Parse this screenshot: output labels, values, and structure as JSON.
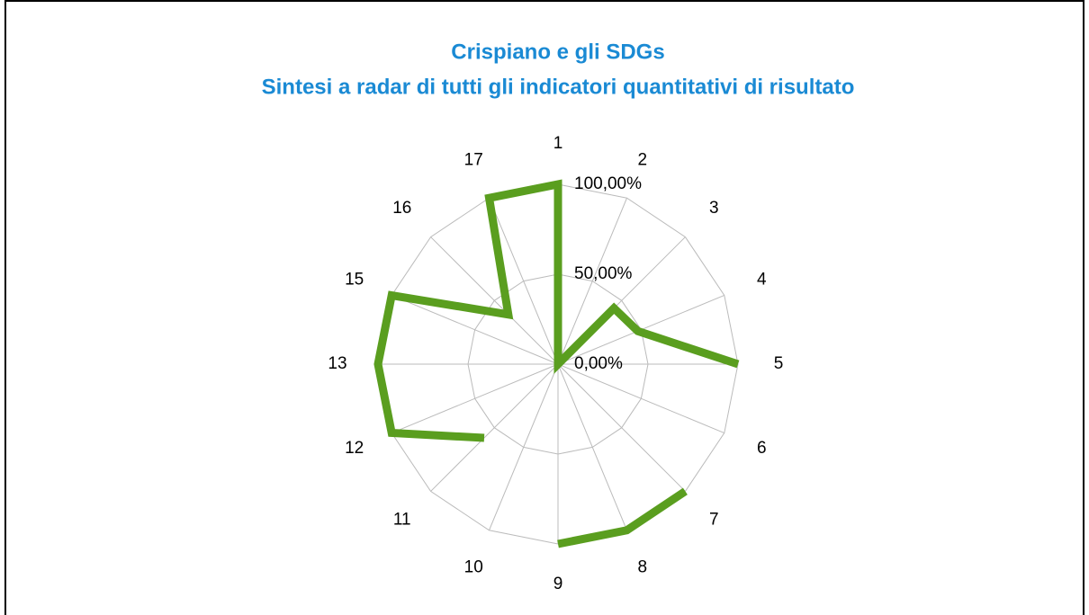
{
  "chart_data": {
    "type": "radar",
    "title": "Crispiano e gli SDGs",
    "subtitle": "Sintesi a radar di tutti gli indicatori quantitativi di risultato",
    "categories": [
      "1",
      "2",
      "3",
      "4",
      "5",
      "6",
      "7",
      "8",
      "9",
      "10",
      "11",
      "12",
      "13",
      "15",
      "16",
      "17"
    ],
    "series": [
      {
        "name": "Crispiano",
        "color": "#5a9e1f",
        "values": [
          100,
          0,
          44,
          48,
          100,
          null,
          100,
          100,
          100,
          null,
          58,
          100,
          100,
          100,
          39,
          100
        ]
      }
    ],
    "ylim": [
      0,
      100
    ],
    "yticks": [
      {
        "value": 0,
        "label": "0,00%"
      },
      {
        "value": 50,
        "label": "50,00%"
      },
      {
        "value": 100,
        "label": "100,00%"
      }
    ],
    "grid": true
  }
}
